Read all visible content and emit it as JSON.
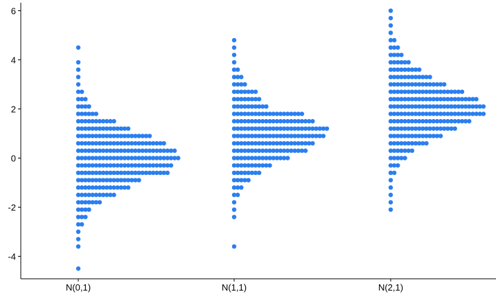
{
  "chart_data": {
    "type": "dot-histogram",
    "categories": [
      "N(0,1)",
      "N(1,1)",
      "N(2,1)"
    ],
    "bin_width": 0.3,
    "ylim": [
      -4.5,
      6
    ],
    "yticks": [
      -4,
      -2,
      0,
      2,
      4,
      6
    ],
    "ytick_labels": [
      "-4",
      "-2",
      "0",
      "2",
      "4",
      "6"
    ],
    "grid": false,
    "dot_color": "#2b7fef",
    "series": [
      {
        "bins": [
          {
            "y": -4.5,
            "count": 1
          },
          {
            "y": -3.6,
            "count": 1
          },
          {
            "y": -3.3,
            "count": 1
          },
          {
            "y": -3.0,
            "count": 1
          },
          {
            "y": -2.7,
            "count": 2
          },
          {
            "y": -2.4,
            "count": 3
          },
          {
            "y": -2.1,
            "count": 4
          },
          {
            "y": -1.8,
            "count": 7
          },
          {
            "y": -1.5,
            "count": 11
          },
          {
            "y": -1.2,
            "count": 15
          },
          {
            "y": -0.9,
            "count": 18
          },
          {
            "y": -0.6,
            "count": 26
          },
          {
            "y": -0.3,
            "count": 27
          },
          {
            "y": 0.0,
            "count": 29
          },
          {
            "y": 0.3,
            "count": 28
          },
          {
            "y": 0.6,
            "count": 25
          },
          {
            "y": 0.9,
            "count": 21
          },
          {
            "y": 1.2,
            "count": 15
          },
          {
            "y": 1.5,
            "count": 11
          },
          {
            "y": 1.8,
            "count": 6
          },
          {
            "y": 2.1,
            "count": 4
          },
          {
            "y": 2.4,
            "count": 3
          },
          {
            "y": 2.7,
            "count": 2
          },
          {
            "y": 3.0,
            "count": 1
          },
          {
            "y": 3.3,
            "count": 1
          },
          {
            "y": 3.6,
            "count": 1
          },
          {
            "y": 3.9,
            "count": 1
          },
          {
            "y": 4.5,
            "count": 1
          }
        ]
      },
      {
        "bins": [
          {
            "y": -3.6,
            "count": 1
          },
          {
            "y": -2.4,
            "count": 1
          },
          {
            "y": -2.1,
            "count": 1
          },
          {
            "y": -1.8,
            "count": 1
          },
          {
            "y": -1.5,
            "count": 2
          },
          {
            "y": -1.2,
            "count": 3
          },
          {
            "y": -0.9,
            "count": 5
          },
          {
            "y": -0.6,
            "count": 8
          },
          {
            "y": -0.3,
            "count": 11
          },
          {
            "y": 0.0,
            "count": 16
          },
          {
            "y": 0.3,
            "count": 21
          },
          {
            "y": 0.6,
            "count": 23
          },
          {
            "y": 0.9,
            "count": 26
          },
          {
            "y": 1.2,
            "count": 27
          },
          {
            "y": 1.5,
            "count": 23
          },
          {
            "y": 1.8,
            "count": 20
          },
          {
            "y": 2.1,
            "count": 10
          },
          {
            "y": 2.4,
            "count": 8
          },
          {
            "y": 2.7,
            "count": 7
          },
          {
            "y": 3.0,
            "count": 4
          },
          {
            "y": 3.3,
            "count": 3
          },
          {
            "y": 3.6,
            "count": 2
          },
          {
            "y": 3.9,
            "count": 1
          },
          {
            "y": 4.2,
            "count": 1
          },
          {
            "y": 4.5,
            "count": 1
          },
          {
            "y": 4.8,
            "count": 1
          }
        ]
      },
      {
        "bins": [
          {
            "y": -2.1,
            "count": 1
          },
          {
            "y": -1.8,
            "count": 1
          },
          {
            "y": -1.5,
            "count": 1
          },
          {
            "y": -1.2,
            "count": 1
          },
          {
            "y": -0.9,
            "count": 1
          },
          {
            "y": -0.6,
            "count": 2
          },
          {
            "y": -0.3,
            "count": 3
          },
          {
            "y": 0.0,
            "count": 5
          },
          {
            "y": 0.3,
            "count": 7
          },
          {
            "y": 0.6,
            "count": 11
          },
          {
            "y": 0.9,
            "count": 15
          },
          {
            "y": 1.2,
            "count": 19
          },
          {
            "y": 1.5,
            "count": 23
          },
          {
            "y": 1.8,
            "count": 27
          },
          {
            "y": 2.1,
            "count": 27
          },
          {
            "y": 2.4,
            "count": 25
          },
          {
            "y": 2.7,
            "count": 21
          },
          {
            "y": 3.0,
            "count": 16
          },
          {
            "y": 3.3,
            "count": 12
          },
          {
            "y": 3.6,
            "count": 9
          },
          {
            "y": 3.9,
            "count": 6
          },
          {
            "y": 4.2,
            "count": 4
          },
          {
            "y": 4.5,
            "count": 3
          },
          {
            "y": 4.8,
            "count": 2
          },
          {
            "y": 5.1,
            "count": 1
          },
          {
            "y": 5.4,
            "count": 1
          },
          {
            "y": 5.7,
            "count": 1
          },
          {
            "y": 6.0,
            "count": 1
          }
        ]
      }
    ]
  }
}
